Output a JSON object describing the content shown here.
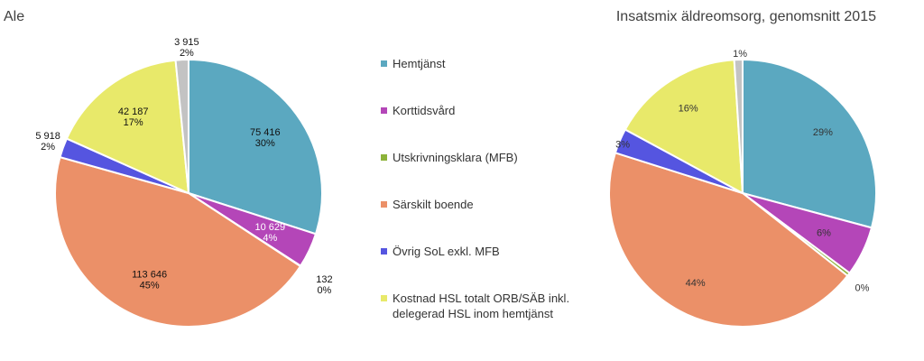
{
  "legend": [
    {
      "label": "Hemtjänst",
      "color": "#5BA8C0"
    },
    {
      "label": "Korttidsvård",
      "color": "#B446B8"
    },
    {
      "label": "Utskrivningsklara (MFB)",
      "color": "#8DB33A"
    },
    {
      "label": "Särskilt boende",
      "color": "#EB9068"
    },
    {
      "label": "Övrig SoL exkl. MFB",
      "color": "#5555E0"
    },
    {
      "label": "Kostnad HSL totalt ORB/SÄB inkl. delegerad HSL inom hemtjänst",
      "color": "#E8E96A"
    }
  ],
  "chart_data": [
    {
      "type": "pie",
      "title": "Ale",
      "categories": [
        "Hemtjänst",
        "Korttidsvård",
        "Utskrivningsklara (MFB)",
        "Särskilt boende",
        "Övrig SoL exkl. MFB",
        "Kostnad HSL totalt ORB/SÄB inkl. delegerad HSL inom hemtjänst",
        ""
      ],
      "values": [
        75416,
        10629,
        132,
        113646,
        5918,
        42187,
        3915
      ],
      "value_labels": [
        "75 416",
        "10 629",
        "132",
        "113 646",
        "5 918",
        "42 187",
        "3 915"
      ],
      "percent_labels": [
        "30%",
        "4%",
        "0%",
        "45%",
        "2%",
        "17%",
        "2%"
      ],
      "colors": [
        "#5BA8C0",
        "#B446B8",
        "#8DB33A",
        "#EB9068",
        "#5555E0",
        "#E8E96A",
        "#C3C3C3"
      ]
    },
    {
      "type": "pie",
      "title": "Insatsmix äldreomsorg, genomsnitt 2015",
      "categories": [
        "Hemtjänst",
        "Korttidsvård",
        "Utskrivningsklara (MFB)",
        "Särskilt boende",
        "Övrig SoL exkl. MFB",
        "Kostnad HSL totalt ORB/SÄB inkl. delegerad HSL inom hemtjänst",
        ""
      ],
      "values": [
        29,
        6,
        0.4,
        44,
        3,
        16,
        1
      ],
      "percent_labels": [
        "29%",
        "6%",
        "0%",
        "44%",
        "3%",
        "16%",
        "1%"
      ],
      "colors": [
        "#5BA8C0",
        "#B446B8",
        "#8DB33A",
        "#EB9068",
        "#5555E0",
        "#E8E96A",
        "#C3C3C3"
      ]
    }
  ]
}
